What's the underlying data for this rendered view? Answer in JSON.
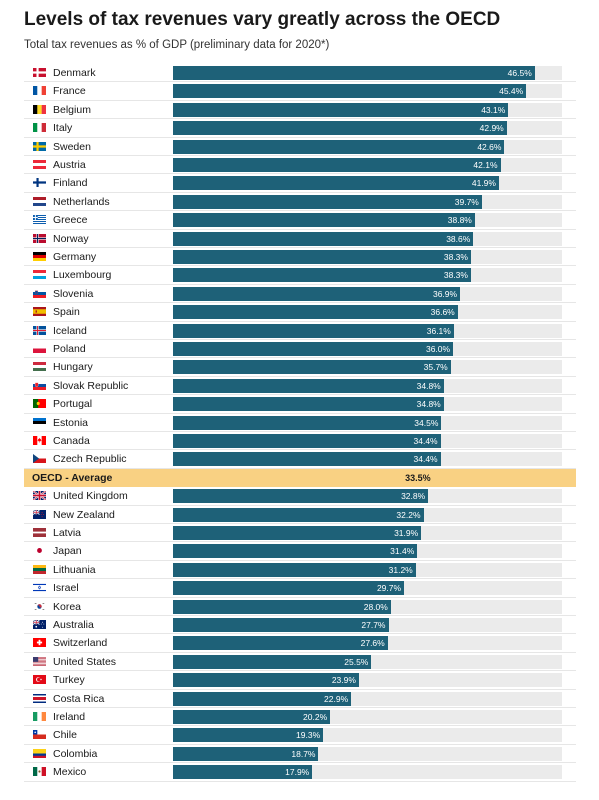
{
  "title": "Levels of tax revenues vary greatly across the OECD",
  "subtitle": "Total tax revenues as % of GDP (preliminary data for 2020*)",
  "colors": {
    "bar": "#1e6178",
    "track": "#ebebeb",
    "highlight": "#f9d183"
  },
  "chart_data": {
    "type": "bar",
    "orientation": "horizontal",
    "title": "Levels of tax revenues vary greatly across the OECD",
    "subtitle": "Total tax revenues as % of GDP (preliminary data for 2020*)",
    "value_suffix": "%",
    "xlim": [
      0,
      50
    ],
    "grid": false,
    "highlight_category": "OECD - Average",
    "categories": [
      "Denmark",
      "France",
      "Belgium",
      "Italy",
      "Sweden",
      "Austria",
      "Finland",
      "Netherlands",
      "Greece",
      "Norway",
      "Germany",
      "Luxembourg",
      "Slovenia",
      "Spain",
      "Iceland",
      "Poland",
      "Hungary",
      "Slovak Republic",
      "Portugal",
      "Estonia",
      "Canada",
      "Czech Republic",
      "OECD - Average",
      "United Kingdom",
      "New Zealand",
      "Latvia",
      "Japan",
      "Lithuania",
      "Israel",
      "Korea",
      "Australia",
      "Switzerland",
      "United States",
      "Turkey",
      "Costa Rica",
      "Ireland",
      "Chile",
      "Colombia",
      "Mexico"
    ],
    "values": [
      46.5,
      45.4,
      43.1,
      42.9,
      42.6,
      42.1,
      41.9,
      39.7,
      38.8,
      38.6,
      38.3,
      38.3,
      36.9,
      36.6,
      36.1,
      36.0,
      35.7,
      34.8,
      34.8,
      34.5,
      34.4,
      34.4,
      33.5,
      32.8,
      32.2,
      31.9,
      31.4,
      31.2,
      29.7,
      28.0,
      27.7,
      27.6,
      25.5,
      23.9,
      22.9,
      20.2,
      19.3,
      18.7,
      17.9
    ],
    "value_labels": [
      "46.5%",
      "45.4%",
      "43.1%",
      "42.9%",
      "42.6%",
      "42.1%",
      "41.9%",
      "39.7%",
      "38.8%",
      "38.6%",
      "38.3%",
      "38.3%",
      "36.9%",
      "36.6%",
      "36.1%",
      "36.0%",
      "35.7%",
      "34.8%",
      "34.8%",
      "34.5%",
      "34.4%",
      "34.4%",
      "33.5%",
      "32.8%",
      "32.2%",
      "31.9%",
      "31.4%",
      "31.2%",
      "29.7%",
      "28.0%",
      "27.7%",
      "27.6%",
      "25.5%",
      "23.9%",
      "22.9%",
      "20.2%",
      "19.3%",
      "18.7%",
      "17.9%"
    ],
    "flag_icons": [
      "denmark-flag-icon",
      "france-flag-icon",
      "belgium-flag-icon",
      "italy-flag-icon",
      "sweden-flag-icon",
      "austria-flag-icon",
      "finland-flag-icon",
      "netherlands-flag-icon",
      "greece-flag-icon",
      "norway-flag-icon",
      "germany-flag-icon",
      "luxembourg-flag-icon",
      "slovenia-flag-icon",
      "spain-flag-icon",
      "iceland-flag-icon",
      "poland-flag-icon",
      "hungary-flag-icon",
      "slovakia-flag-icon",
      "portugal-flag-icon",
      "estonia-flag-icon",
      "canada-flag-icon",
      "czechia-flag-icon",
      "",
      "united-kingdom-flag-icon",
      "new-zealand-flag-icon",
      "latvia-flag-icon",
      "japan-flag-icon",
      "lithuania-flag-icon",
      "israel-flag-icon",
      "korea-flag-icon",
      "australia-flag-icon",
      "switzerland-flag-icon",
      "united-states-flag-icon",
      "turkey-flag-icon",
      "costa-rica-flag-icon",
      "ireland-flag-icon",
      "chile-flag-icon",
      "colombia-flag-icon",
      "mexico-flag-icon"
    ]
  }
}
